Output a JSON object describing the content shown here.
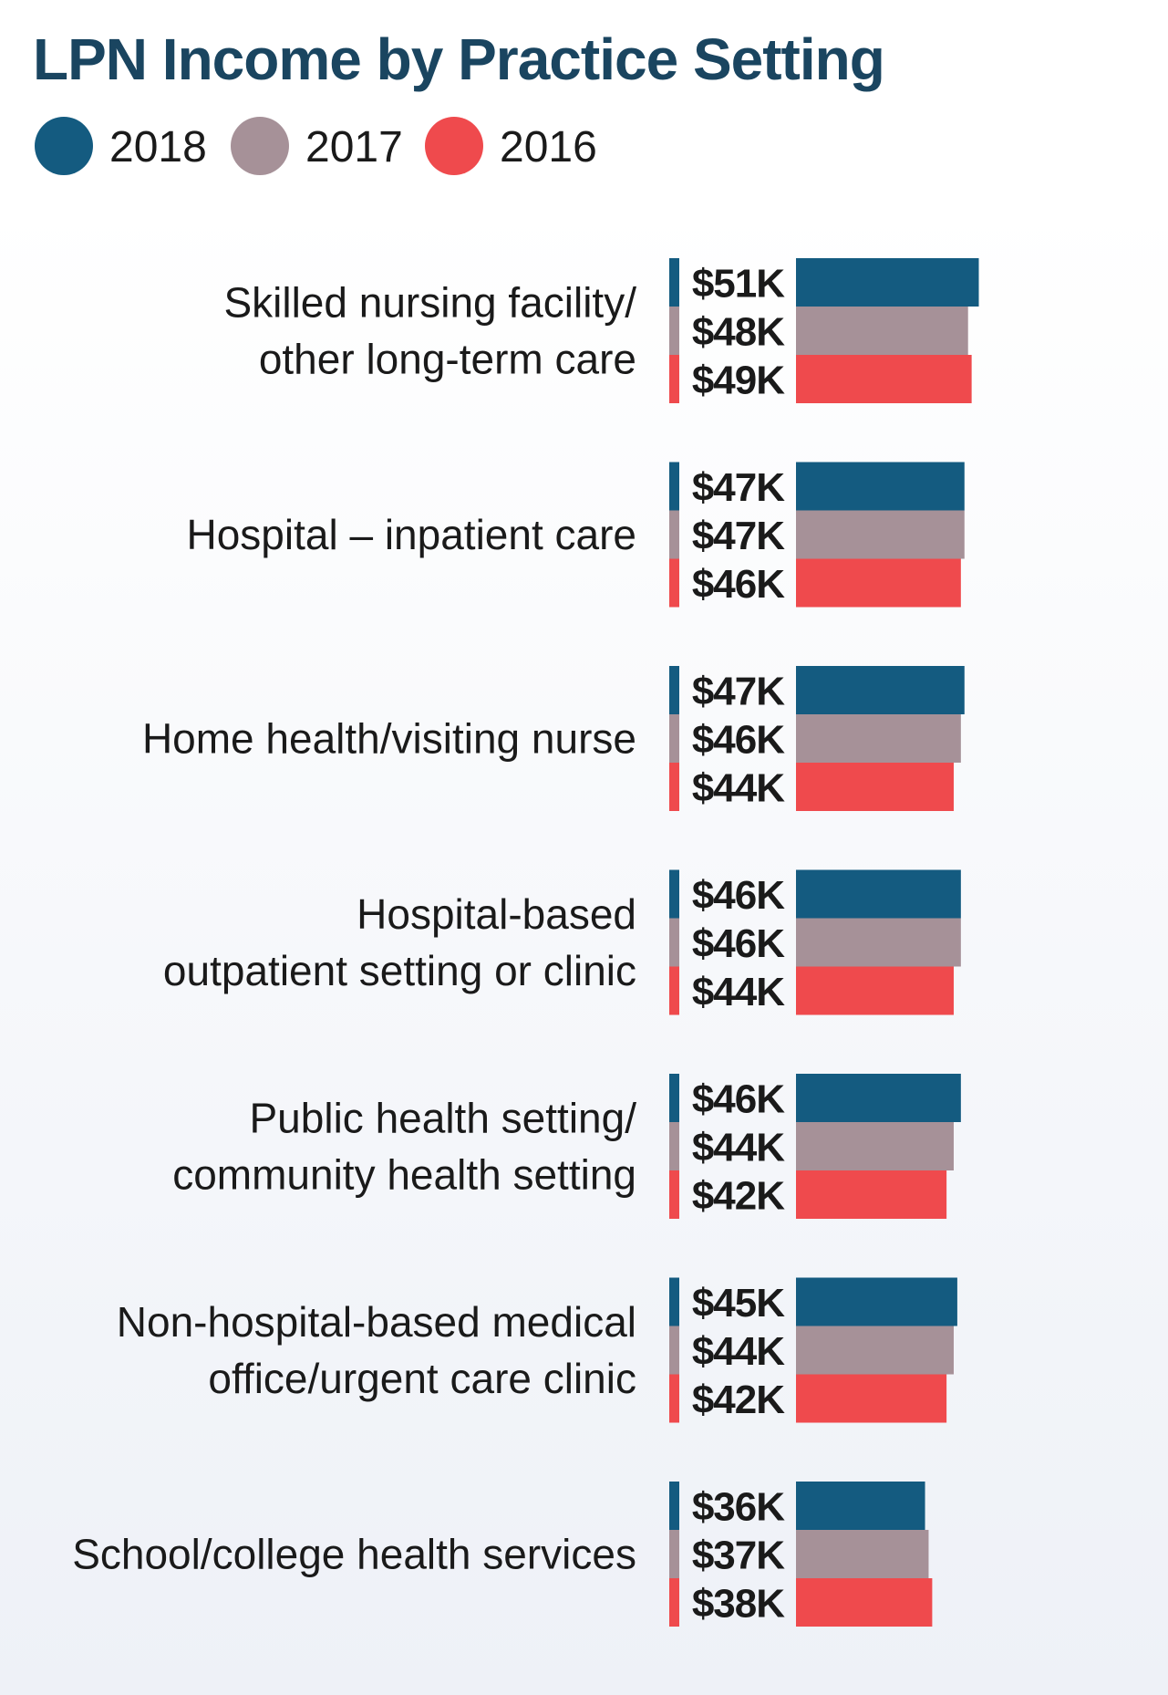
{
  "chart_data": {
    "type": "bar",
    "orientation": "horizontal",
    "title": "LPN Income by Practice Setting",
    "xlabel": "",
    "ylabel": "",
    "xlim": [
      0,
      51
    ],
    "grid": false,
    "legend_position": "top-left",
    "value_prefix": "$",
    "value_suffix": "K",
    "categories": [
      [
        "Skilled nursing facility/",
        "other long-term care"
      ],
      [
        "Hospital – inpatient care"
      ],
      [
        "Home health/visiting nurse"
      ],
      [
        "Hospital-based",
        "outpatient setting or clinic"
      ],
      [
        "Public health setting/",
        "community health setting"
      ],
      [
        "Non-hospital-based medical",
        "office/urgent care clinic"
      ],
      [
        "School/college health services"
      ]
    ],
    "series": [
      {
        "name": "2018",
        "color": "#145b80",
        "values": [
          51,
          47,
          47,
          46,
          46,
          45,
          36
        ]
      },
      {
        "name": "2017",
        "color": "#a69198",
        "values": [
          48,
          47,
          46,
          46,
          44,
          44,
          37
        ]
      },
      {
        "name": "2016",
        "color": "#ef4a4d",
        "values": [
          49,
          46,
          44,
          44,
          42,
          42,
          38
        ]
      }
    ]
  },
  "colors": {
    "title": "#1a4560",
    "text": "#1a1a1a"
  }
}
